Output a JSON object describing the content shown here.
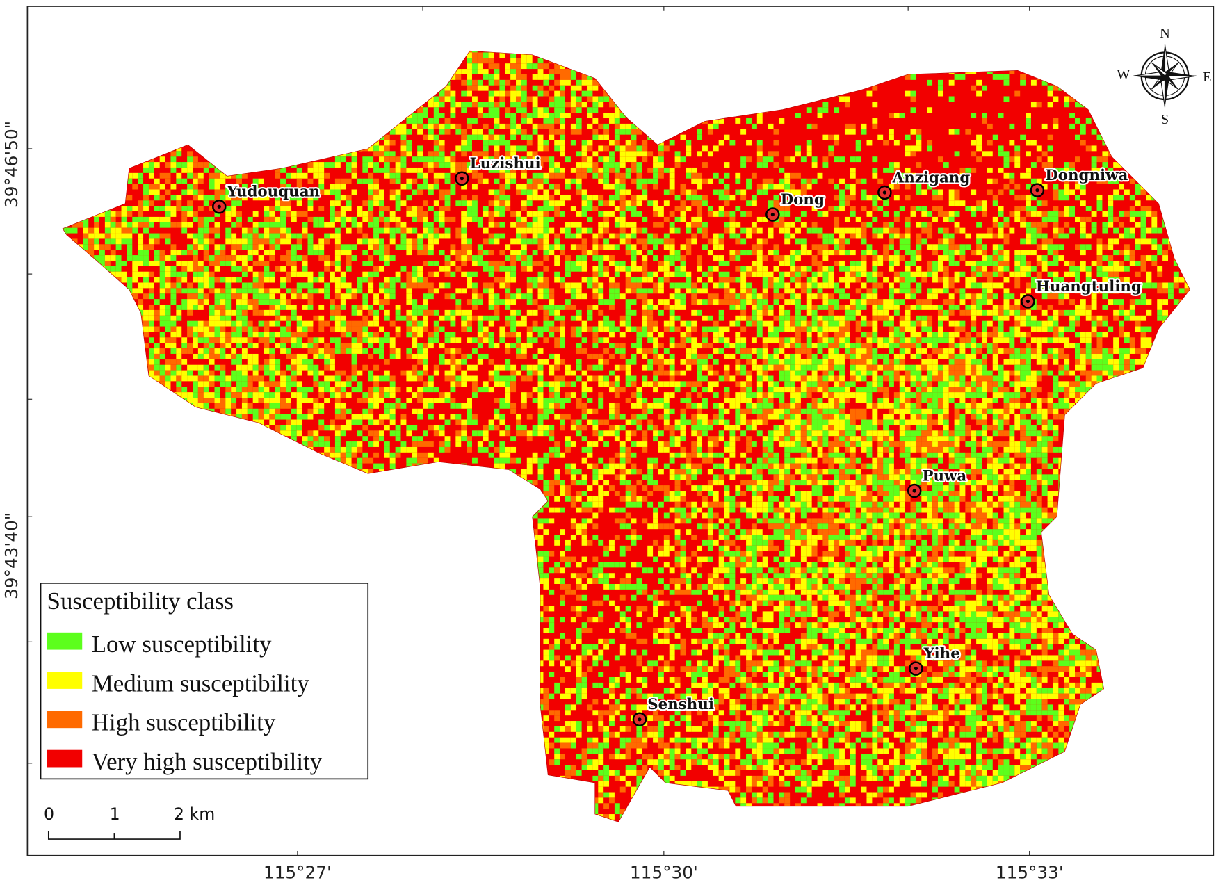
{
  "map": {
    "x_axis_labels": [
      "115°27'",
      "115°30'",
      "115°33'"
    ],
    "y_axis_labels": [
      "39°46'50\"",
      "39°43'40\""
    ],
    "legend": {
      "title": "Susceptibility class",
      "items": [
        {
          "label": "Low susceptibility",
          "color": "#5cff1c"
        },
        {
          "label": "Medium susceptibility",
          "color": "#ffff00"
        },
        {
          "label": "High susceptibility",
          "color": "#ff6a00"
        },
        {
          "label": "Very high susceptibility",
          "color": "#f20000"
        }
      ]
    },
    "places": [
      "Yudouquan",
      "Luzishui",
      "Dong",
      "Anzigang",
      "Dongniwa",
      "Huangtuling",
      "Puwa",
      "Yihe",
      "Senshui"
    ],
    "scale_bar": [
      "0",
      "1",
      "2 km"
    ],
    "compass": [
      "N",
      "E",
      "S",
      "W"
    ]
  }
}
